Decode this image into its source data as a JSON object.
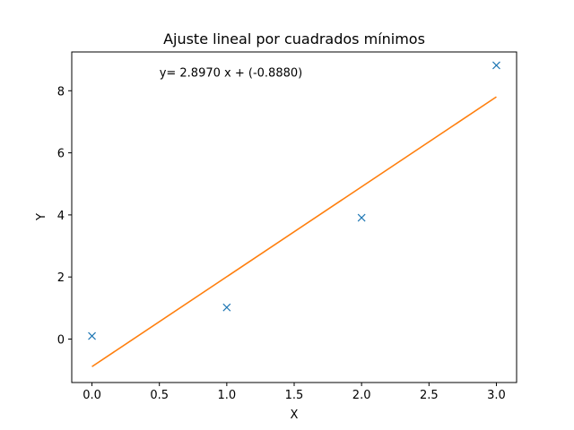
{
  "chart_data": {
    "type": "scatter",
    "title": "Ajuste lineal por cuadrados mínimos",
    "xlabel": "X",
    "ylabel": "Y",
    "xlim": [
      -0.15,
      3.15
    ],
    "ylim": [
      -1.4,
      9.25
    ],
    "xticks": [
      "0.0",
      "0.5",
      "1.0",
      "1.5",
      "2.0",
      "2.5",
      "3.0"
    ],
    "yticks": [
      "0",
      "2",
      "4",
      "6",
      "8"
    ],
    "grid": false,
    "legend": "none",
    "series": [
      {
        "type": "scatter",
        "marker": "x",
        "color": "#1f77b4",
        "x": [
          0,
          1,
          2,
          3
        ],
        "y": [
          0.1,
          1.02,
          3.91,
          8.82
        ]
      },
      {
        "type": "line",
        "color": "#ff7f0e",
        "x": [
          0,
          3
        ],
        "y": [
          -0.888,
          7.803
        ]
      }
    ],
    "annotation": {
      "text": "y= 2.8970 x + (-0.8880)",
      "x": 0.5,
      "y": 8.45
    }
  }
}
